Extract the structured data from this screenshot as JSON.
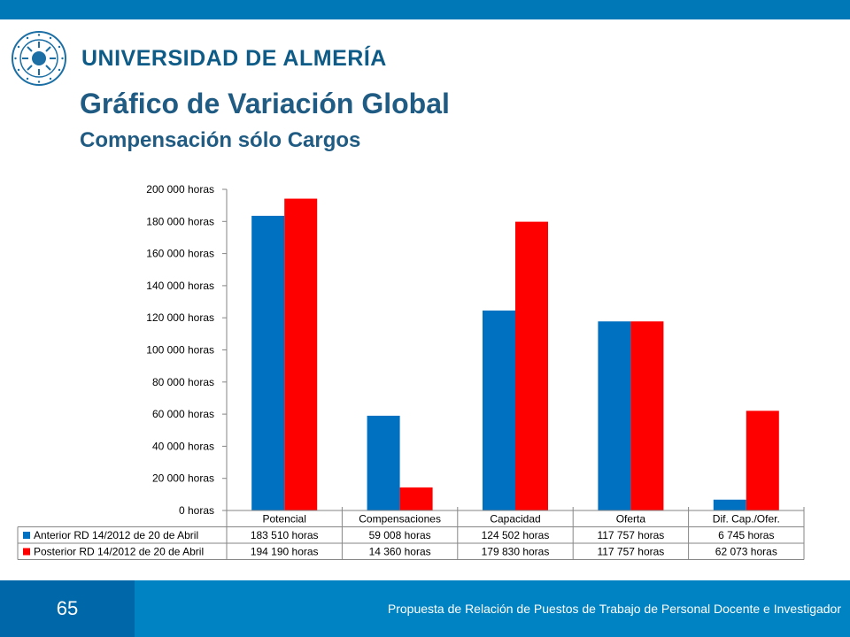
{
  "header": {
    "university": "UNIVERSIDAD DE ALMERÍA",
    "title": "Gráfico de Variación Global",
    "subtitle": "Compensación sólo Cargos"
  },
  "colors": {
    "brand": "#0077b6",
    "title": "#1f5b82",
    "series_anterior": "#0070c0",
    "series_posterior": "#ff0000",
    "footer_dark": "#0068a8",
    "footer_light": "#0083c3"
  },
  "chart_data": {
    "type": "bar",
    "categories": [
      "Potencial",
      "Compensaciones",
      "Capacidad",
      "Oferta",
      "Dif. Cap./Ofer."
    ],
    "series": [
      {
        "name": "Anterior RD 14/2012 de 20 de Abril",
        "values": [
          183510,
          59008,
          124502,
          117757,
          6745
        ],
        "labels": [
          "183 510 horas",
          "59 008 horas",
          "124 502 horas",
          "117 757 horas",
          "6 745 horas"
        ]
      },
      {
        "name": "Posterior RD 14/2012 de 20 de Abril",
        "values": [
          194190,
          14360,
          179830,
          117757,
          62073
        ],
        "labels": [
          "194 190 horas",
          "14 360 horas",
          "179 830 horas",
          "117 757 horas",
          "62 073 horas"
        ]
      }
    ],
    "ylim": [
      0,
      200000
    ],
    "yticks": [
      0,
      20000,
      40000,
      60000,
      80000,
      100000,
      120000,
      140000,
      160000,
      180000,
      200000
    ],
    "ytick_labels": [
      "0 horas",
      "20 000 horas",
      "40 000 horas",
      "60 000 horas",
      "80 000 horas",
      "100 000 horas",
      "120 000 horas",
      "140 000 horas",
      "160 000 horas",
      "180 000 horas",
      "200 000 horas"
    ],
    "grid": false,
    "legend": "data-table"
  },
  "footer": {
    "page_number": "65",
    "caption": "Propuesta de Relación de Puestos de Trabajo de Personal Docente e Investigador"
  }
}
